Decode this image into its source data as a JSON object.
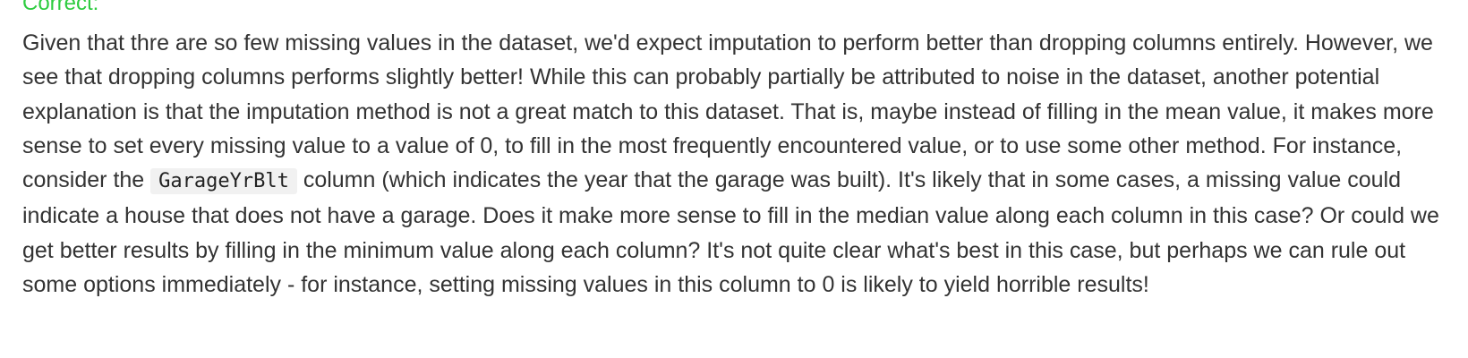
{
  "feedback": {
    "status_label": "Correct:",
    "explanation_parts": {
      "before_code": "Given that thre are so few missing values in the dataset, we'd expect imputation to perform better than dropping columns entirely. However, we see that dropping columns performs slightly better! While this can probably partially be attributed to noise in the dataset, another potential explanation is that the imputation method is not a great match to this dataset. That is, maybe instead of filling in the mean value, it makes more sense to set every missing value to a value of 0, to fill in the most frequently encountered value, or to use some other method. For instance, consider the",
      "code": "GarageYrBlt",
      "after_code": "column (which indicates the year that the garage was built). It's likely that in some cases, a missing value could indicate a house that does not have a garage. Does it make more sense to fill in the median value along each column in this case? Or could we get better results by filling in the minimum value along each column? It's not quite clear what's best in this case, but perhaps we can rule out some options immediately - for instance, setting missing values in this column to 0 is likely to yield horrible results!"
    },
    "colors": {
      "correct_green": "#2ecc40",
      "body_text": "#333333",
      "code_background": "#f1f1f1"
    }
  }
}
